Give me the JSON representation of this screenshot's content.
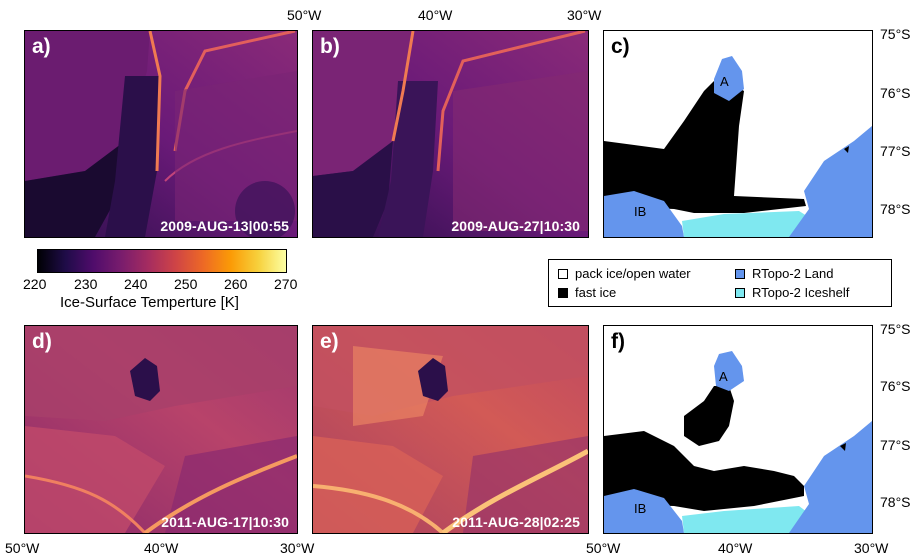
{
  "panels": {
    "a": {
      "label": "a)",
      "date": "2009-AUG-13|00:55"
    },
    "b": {
      "label": "b)",
      "date": "2009-AUG-27|10:30"
    },
    "c": {
      "label": "c)",
      "A": "A",
      "IB": "IB"
    },
    "d": {
      "label": "d)",
      "date": "2011-AUG-17|10:30"
    },
    "e": {
      "label": "e)",
      "date": "2011-AUG-28|02:25"
    },
    "f": {
      "label": "f)",
      "A": "A",
      "IB": "IB"
    }
  },
  "axes": {
    "lon_top": [
      "50°W",
      "40°W",
      "30°W"
    ],
    "lon_bottom": [
      "50°W",
      "40°W",
      "30°W",
      "50°W",
      "40°W",
      "30°W"
    ],
    "lat": [
      "75°S",
      "76°S",
      "77°S",
      "78°S"
    ]
  },
  "colorbar": {
    "ticks": [
      "220",
      "230",
      "240",
      "250",
      "260",
      "270"
    ],
    "label": "Ice-Surface Temperture [K]",
    "range": [
      220,
      270
    ],
    "colors": [
      "#000004",
      "#4f0c6b",
      "#a52c60",
      "#ed6925",
      "#fcffa4"
    ]
  },
  "legend": {
    "items": [
      {
        "label": "pack ice/open water",
        "color": "#ffffff"
      },
      {
        "label": "fast ice",
        "color": "#000000"
      },
      {
        "label": "RTopo-2 Land",
        "color": "#6495ed"
      },
      {
        "label": "RTopo-2 Iceshelf",
        "color": "#7fe8f0"
      }
    ]
  }
}
